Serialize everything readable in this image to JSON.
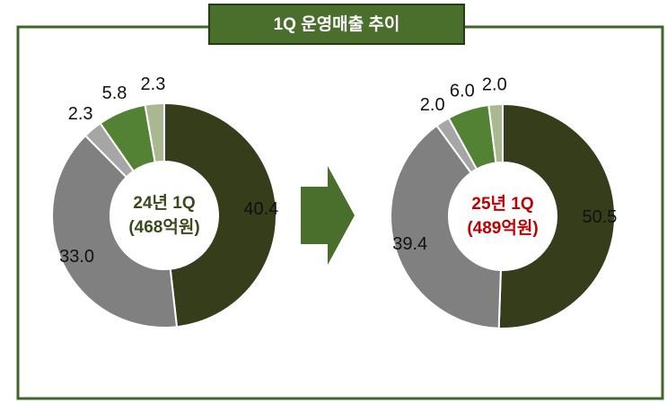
{
  "title": "1Q 운영매출 추이",
  "chart_data": [
    {
      "type": "donut",
      "center_label": [
        "24년 1Q",
        "(468억원)"
      ],
      "center_color": "#3b4a1c",
      "categories": [
        null,
        null,
        null,
        null,
        null
      ],
      "values": [
        40.4,
        33.0,
        2.3,
        5.8,
        2.3
      ],
      "value_labels": [
        "40.4",
        "33.0",
        "2.3",
        "5.8",
        "2.3"
      ],
      "colors": [
        "#353d1b",
        "#808080",
        "#a6a6a6",
        "#548235",
        "#a9b890"
      ]
    },
    {
      "type": "donut",
      "center_label": [
        "25년 1Q",
        "(489억원)"
      ],
      "center_color": "#c00000",
      "categories": [
        null,
        null,
        null,
        null,
        null
      ],
      "values": [
        50.5,
        39.4,
        2.0,
        6.0,
        2.0
      ],
      "value_labels": [
        "50.5",
        "39.4",
        "2.0",
        "6.0",
        "2.0"
      ],
      "colors": [
        "#353d1b",
        "#808080",
        "#a6a6a6",
        "#548235",
        "#a9b890"
      ]
    }
  ]
}
